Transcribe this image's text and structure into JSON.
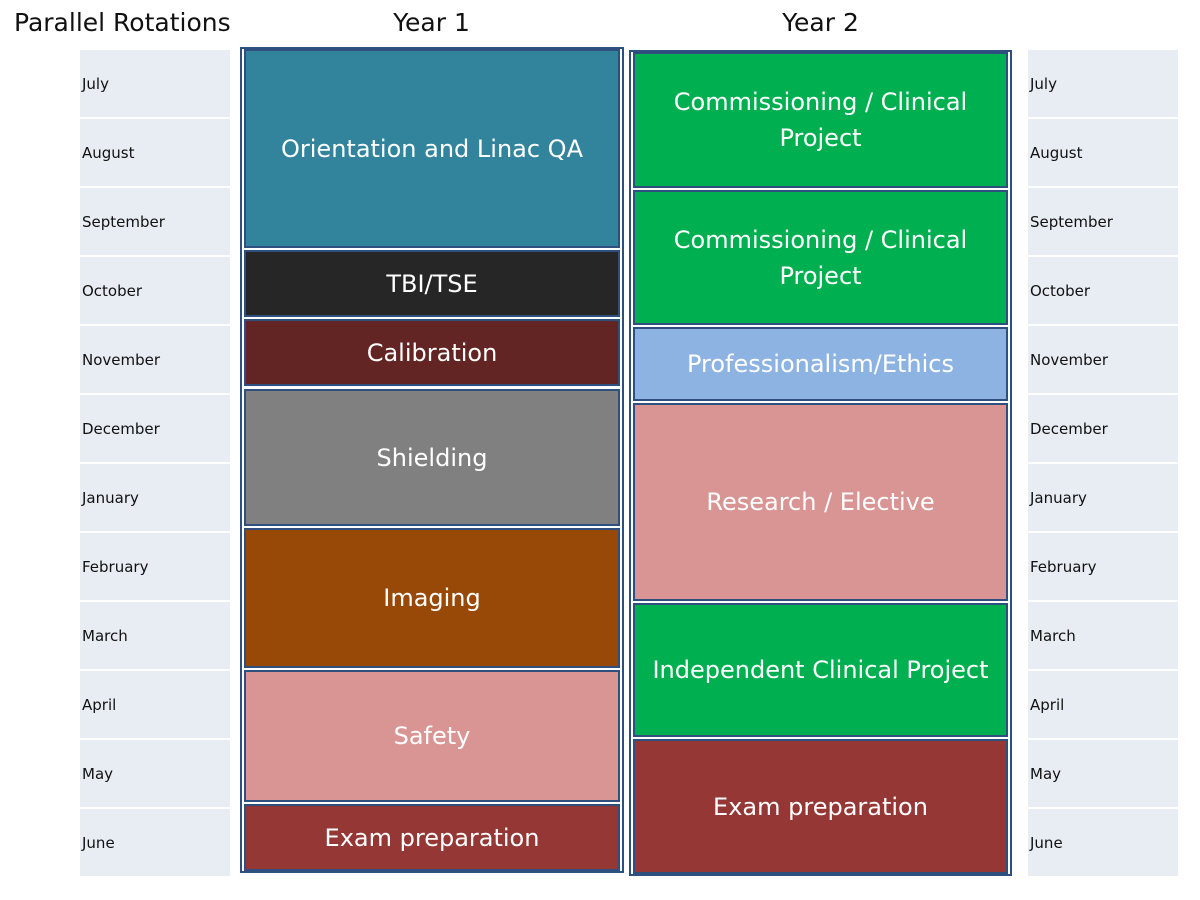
{
  "headers": {
    "main": "Parallel Rotations",
    "year1": "Year 1",
    "year2": "Year 2"
  },
  "months": [
    "July",
    "August",
    "September",
    "October",
    "November",
    "December",
    "January",
    "February",
    "March",
    "April",
    "May",
    "June"
  ],
  "year1": {
    "blocks": [
      {
        "label": "Orientation and Linac QA",
        "color": "#31849b"
      },
      {
        "label": "TBI/TSE",
        "color": "#262626"
      },
      {
        "label": "Calibration",
        "color": "#632523"
      },
      {
        "label": "Shielding",
        "color": "#808080"
      },
      {
        "label": "Imaging",
        "color": "#984807"
      },
      {
        "label": "Safety",
        "color": "#d99594"
      },
      {
        "label": "Exam preparation",
        "color": "#953735"
      }
    ]
  },
  "year2": {
    "blocks": [
      {
        "label": "Commissioning / Clinical Project",
        "color": "#00b050"
      },
      {
        "label": "Commissioning / Clinical Project",
        "color": "#00b050"
      },
      {
        "label": "Professionalism/Ethics",
        "color": "#8db3e2"
      },
      {
        "label": "Research / Elective",
        "color": "#d99594"
      },
      {
        "label": "Independent Clinical Project",
        "color": "#00b050"
      },
      {
        "label": "Exam preparation",
        "color": "#953735"
      }
    ]
  }
}
